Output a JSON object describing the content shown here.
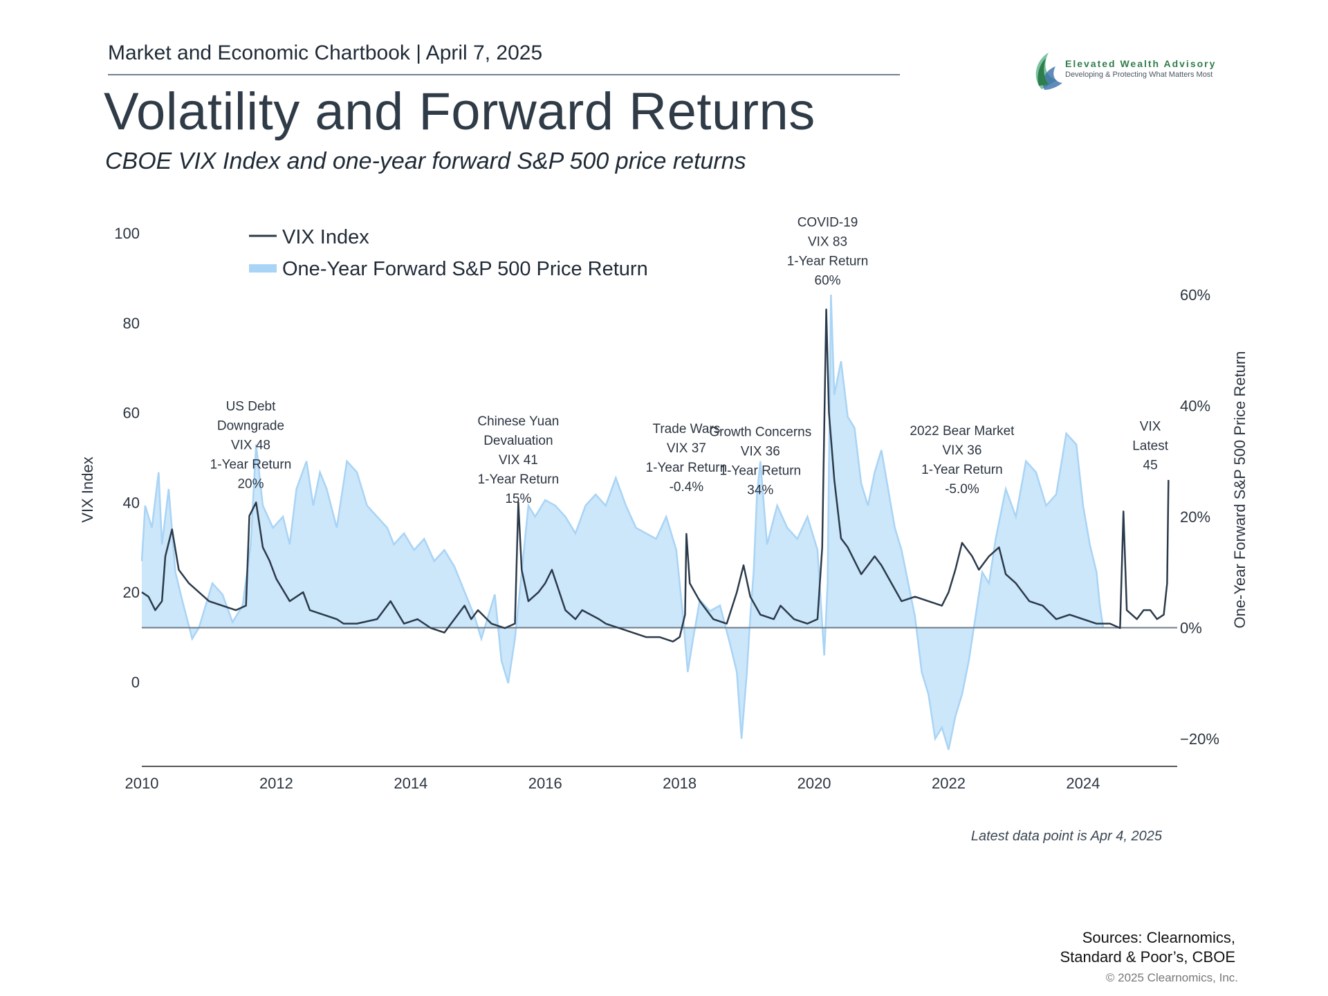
{
  "header": {
    "chartbook": "Market and Economic Chartbook | April 7, 2025",
    "title": "Volatility and Forward Returns",
    "subtitle": "CBOE VIX Index and one-year forward S&P 500 price returns"
  },
  "logo": {
    "name": "Elevated Wealth Advisory",
    "tagline": "Developing & Protecting What Matters Most",
    "colors": [
      "#2f7d4a",
      "#7cc3a3",
      "#3a6fa8"
    ]
  },
  "footer": {
    "note": "Latest data point is Apr 4, 2025",
    "sources_line1": "Sources: Clearnomics,",
    "sources_line2": "Standard & Poor’s, CBOE",
    "copyright": "© 2025 Clearnomics, Inc."
  },
  "chart_data": {
    "type": "line",
    "title": "",
    "ylabel": "VIX Index",
    "ylabel_right": "One-Year Forward S&P 500 Price Return",
    "ylim": [
      0,
      100
    ],
    "ylim_right": [
      -20,
      60
    ],
    "y_ticks": [
      "100",
      "80",
      "60",
      "40",
      "20",
      "0"
    ],
    "y_right_ticks": [
      "60%",
      "40%",
      "20%",
      "0%",
      "−20%"
    ],
    "x_ticks": [
      "2010",
      "2012",
      "2014",
      "2016",
      "2018",
      "2020",
      "2022",
      "2024"
    ],
    "xlim": [
      2010.0,
      2025.4
    ],
    "legend_position": "top-left",
    "colors": {
      "vix": "#2b3a4a",
      "return": "#a9d4f5",
      "return_fill": "#cce6fa",
      "axis": "#6d7c8a"
    },
    "series": [
      {
        "name": "VIX Index",
        "axis": "left",
        "x": [
          2010.0,
          2010.1,
          2010.2,
          2010.3,
          2010.35,
          2010.45,
          2010.55,
          2010.7,
          2010.85,
          2011.0,
          2011.2,
          2011.4,
          2011.55,
          2011.6,
          2011.7,
          2011.8,
          2011.9,
          2012.0,
          2012.2,
          2012.4,
          2012.5,
          2012.7,
          2012.9,
          2013.0,
          2013.2,
          2013.5,
          2013.7,
          2013.9,
          2014.1,
          2014.3,
          2014.5,
          2014.6,
          2014.8,
          2014.9,
          2015.0,
          2015.2,
          2015.4,
          2015.55,
          2015.6,
          2015.65,
          2015.75,
          2015.9,
          2016.0,
          2016.1,
          2016.3,
          2016.45,
          2016.55,
          2016.8,
          2016.9,
          2017.1,
          2017.3,
          2017.5,
          2017.7,
          2017.9,
          2018.0,
          2018.08,
          2018.1,
          2018.15,
          2018.3,
          2018.5,
          2018.7,
          2018.85,
          2018.95,
          2019.05,
          2019.2,
          2019.4,
          2019.5,
          2019.7,
          2019.9,
          2020.05,
          2020.12,
          2020.18,
          2020.22,
          2020.3,
          2020.4,
          2020.5,
          2020.7,
          2020.9,
          2021.0,
          2021.15,
          2021.3,
          2021.5,
          2021.7,
          2021.9,
          2022.0,
          2022.1,
          2022.2,
          2022.35,
          2022.45,
          2022.6,
          2022.75,
          2022.85,
          2023.0,
          2023.2,
          2023.4,
          2023.6,
          2023.8,
          2024.0,
          2024.2,
          2024.4,
          2024.55,
          2024.6,
          2024.65,
          2024.8,
          2024.9,
          2025.0,
          2025.1,
          2025.2,
          2025.25,
          2025.27
        ],
        "y": [
          20,
          19,
          16,
          18,
          28,
          34,
          25,
          22,
          20,
          18,
          17,
          16,
          17,
          37,
          40,
          30,
          27,
          23,
          18,
          20,
          16,
          15,
          14,
          13,
          13,
          14,
          18,
          13,
          14,
          12,
          11,
          13,
          17,
          14,
          16,
          13,
          12,
          13,
          40,
          25,
          18,
          20,
          22,
          25,
          16,
          14,
          16,
          14,
          13,
          12,
          11,
          10,
          10,
          9,
          10,
          15,
          33,
          22,
          18,
          14,
          13,
          20,
          26,
          19,
          15,
          14,
          17,
          14,
          13,
          14,
          30,
          83,
          60,
          45,
          32,
          30,
          24,
          28,
          26,
          22,
          18,
          19,
          18,
          17,
          20,
          25,
          31,
          28,
          25,
          28,
          30,
          24,
          22,
          18,
          17,
          14,
          15,
          14,
          13,
          13,
          12,
          38,
          16,
          14,
          16,
          16,
          14,
          15,
          22,
          45
        ]
      },
      {
        "name": "One-Year Forward S&P 500 Price Return",
        "axis": "right",
        "x": [
          2010.0,
          2010.05,
          2010.15,
          2010.25,
          2010.3,
          2010.4,
          2010.5,
          2010.6,
          2010.75,
          2010.85,
          2010.95,
          2011.05,
          2011.2,
          2011.35,
          2011.5,
          2011.62,
          2011.7,
          2011.8,
          2011.95,
          2012.1,
          2012.2,
          2012.3,
          2012.45,
          2012.55,
          2012.65,
          2012.75,
          2012.9,
          2013.05,
          2013.2,
          2013.35,
          2013.5,
          2013.65,
          2013.75,
          2013.9,
          2014.05,
          2014.2,
          2014.35,
          2014.5,
          2014.65,
          2014.75,
          2014.85,
          2014.95,
          2015.05,
          2015.15,
          2015.25,
          2015.35,
          2015.45,
          2015.55,
          2015.65,
          2015.75,
          2015.85,
          2016.0,
          2016.15,
          2016.3,
          2016.45,
          2016.6,
          2016.75,
          2016.9,
          2017.05,
          2017.2,
          2017.35,
          2017.5,
          2017.65,
          2017.8,
          2017.95,
          2018.0,
          2018.05,
          2018.12,
          2018.2,
          2018.3,
          2018.45,
          2018.6,
          2018.75,
          2018.85,
          2018.92,
          2019.0,
          2019.05,
          2019.1,
          2019.15,
          2019.2,
          2019.3,
          2019.45,
          2019.6,
          2019.75,
          2019.9,
          2020.05,
          2020.15,
          2020.2,
          2020.25,
          2020.3,
          2020.4,
          2020.5,
          2020.6,
          2020.7,
          2020.8,
          2020.9,
          2021.0,
          2021.1,
          2021.2,
          2021.3,
          2021.4,
          2021.5,
          2021.6,
          2021.7,
          2021.8,
          2021.9,
          2022.0,
          2022.1,
          2022.2,
          2022.3,
          2022.4,
          2022.5,
          2022.6,
          2022.7,
          2022.85,
          2023.0,
          2023.15,
          2023.3,
          2023.45,
          2023.6,
          2023.75,
          2023.9,
          2024.0,
          2024.1,
          2024.2,
          2024.25,
          2024.3
        ],
        "y": [
          12,
          22,
          18,
          28,
          15,
          25,
          10,
          5,
          -2,
          0,
          4,
          8,
          6,
          1,
          4,
          15,
          33,
          22,
          18,
          20,
          15,
          25,
          30,
          22,
          28,
          25,
          18,
          30,
          28,
          22,
          20,
          18,
          15,
          17,
          14,
          16,
          12,
          14,
          11,
          8,
          5,
          2,
          -2,
          2,
          6,
          -6,
          -10,
          -2,
          10,
          22,
          20,
          23,
          22,
          20,
          17,
          22,
          24,
          22,
          27,
          22,
          18,
          17,
          16,
          20,
          14,
          8,
          2,
          -8,
          -2,
          5,
          3,
          4,
          -3,
          -8,
          -20,
          -8,
          2,
          10,
          24,
          30,
          15,
          22,
          18,
          16,
          20,
          14,
          -5,
          8,
          60,
          42,
          48,
          38,
          36,
          26,
          22,
          28,
          32,
          25,
          18,
          14,
          8,
          2,
          -8,
          -12,
          -20,
          -18,
          -22,
          -16,
          -12,
          -6,
          2,
          10,
          8,
          16,
          25,
          20,
          30,
          28,
          22,
          24,
          35,
          33,
          22,
          15,
          10,
          4,
          0
        ]
      }
    ],
    "annotations": [
      {
        "lines": [
          "US Debt",
          "Downgrade",
          "VIX 48",
          "1-Year Return",
          "20%"
        ],
        "x": 2011.62,
        "y_top": 60.5
      },
      {
        "lines": [
          "Chinese Yuan",
          "Devaluation",
          "VIX 41",
          "1-Year Return",
          "15%"
        ],
        "x": 2015.6,
        "y_top": 57.2
      },
      {
        "lines": [
          "Trade Wars",
          "VIX 37",
          "1-Year Return",
          "-0.4%"
        ],
        "x": 2018.1,
        "y_top": 55.5
      },
      {
        "lines": [
          "Growth Concerns",
          "VIX 36",
          "1-Year Return",
          "34%"
        ],
        "x": 2019.2,
        "y_top": 54.8
      },
      {
        "lines": [
          "COVID-19",
          "VIX 83",
          "1-Year Return",
          "60%"
        ],
        "x": 2020.2,
        "y_top": 101.5
      },
      {
        "lines": [
          "2022 Bear Market",
          "VIX 36",
          "1-Year Return",
          "-5.0%"
        ],
        "x": 2022.2,
        "y_top": 55.0
      },
      {
        "lines": [
          "VIX",
          "Latest",
          "45"
        ],
        "x": 2025.0,
        "y_top": 56.0
      }
    ]
  }
}
